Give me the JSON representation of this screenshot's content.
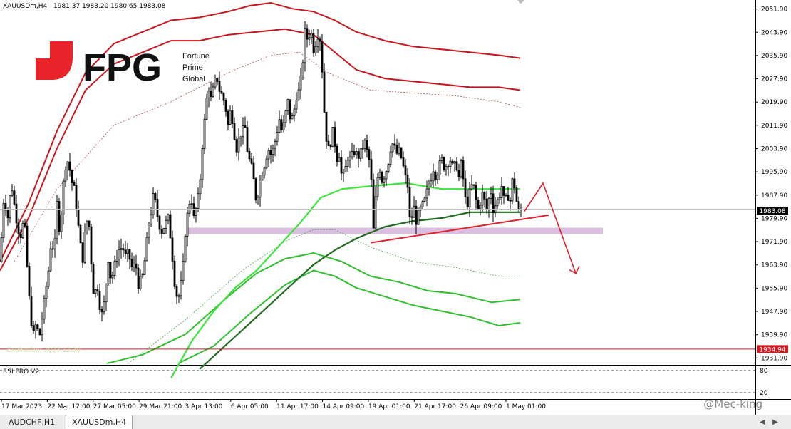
{
  "header": {
    "symbol": "XAUUSDm,H4",
    "ohlc": "1981.37 1983.20 1980.65 1983.08"
  },
  "logo": {
    "brand": "FPG",
    "tagline_lines": [
      "Fortune",
      "Prime",
      "Global"
    ]
  },
  "expiration_note": "Expiration: 2023.12.30",
  "watermark": "@Mec-king",
  "indicator": {
    "name": "RSI PRO V2",
    "levels": [
      "80",
      "20"
    ]
  },
  "tabs": [
    {
      "label": "AUDCHF,H1",
      "active": false
    },
    {
      "label": "XAUUSDm,H4",
      "active": true
    }
  ],
  "colors": {
    "upper_band": "#c8151b",
    "lower_band": "#2fbf2f",
    "ma_fast": "#3ee43e",
    "ma_slow": "#1e6b1e",
    "support_zone": "#d7b8dd",
    "trendline": "#e0202a",
    "price_label_bg": "#000000",
    "level_label_bg": "#d01a20",
    "logo_red": "#e8232a"
  },
  "chart_data": {
    "type": "candlestick",
    "symbol": "XAUUSDm",
    "timeframe": "H4",
    "yticks": [
      2051.9,
      2043.9,
      2035.9,
      2027.9,
      2019.9,
      2011.9,
      2003.9,
      1995.9,
      1987.9,
      1979.9,
      1971.9,
      1963.9,
      1955.9,
      1947.9,
      1939.9,
      1931.9
    ],
    "ylim": [
      1930.5,
      2054.5
    ],
    "xticks": [
      "17 Mar 2023",
      "22 Mar 12:00",
      "27 Mar 05:00",
      "29 Mar 21:00",
      "3 Apr 13:00",
      "6 Apr 05:00",
      "11 Apr 17:00",
      "14 Apr 09:00",
      "19 Apr 01:00",
      "21 Apr 17:00",
      "26 Apr 09:00",
      "1 May 01:00"
    ],
    "current_price": 1983.08,
    "horizontal_level": 1934.94,
    "support_zone": [
      1974.5,
      1976.7
    ],
    "close_path": [
      [
        0,
        1965
      ],
      [
        6,
        1990
      ],
      [
        10,
        1978
      ],
      [
        16,
        1992
      ],
      [
        22,
        1981
      ],
      [
        28,
        1973
      ],
      [
        34,
        1980
      ],
      [
        40,
        1955
      ],
      [
        46,
        1939
      ],
      [
        50,
        1943
      ],
      [
        56,
        1940
      ],
      [
        62,
        1951
      ],
      [
        68,
        1962
      ],
      [
        72,
        1973
      ],
      [
        76,
        1967
      ],
      [
        80,
        1985
      ],
      [
        84,
        1974
      ],
      [
        88,
        1990
      ],
      [
        92,
        1998
      ],
      [
        96,
        2000
      ],
      [
        100,
        1993
      ],
      [
        104,
        1990
      ],
      [
        108,
        1982
      ],
      [
        112,
        1972
      ],
      [
        116,
        1966
      ],
      [
        120,
        1977
      ],
      [
        124,
        1981
      ],
      [
        128,
        1965
      ],
      [
        132,
        1952
      ],
      [
        136,
        1958
      ],
      [
        140,
        1950
      ],
      [
        144,
        1946
      ],
      [
        148,
        1955
      ],
      [
        152,
        1966
      ],
      [
        156,
        1958
      ],
      [
        160,
        1963
      ],
      [
        166,
        1969
      ],
      [
        172,
        1970
      ],
      [
        176,
        1967
      ],
      [
        180,
        1968
      ],
      [
        186,
        1962
      ],
      [
        190,
        1965
      ],
      [
        194,
        1957
      ],
      [
        200,
        1960
      ],
      [
        204,
        1967
      ],
      [
        208,
        1977
      ],
      [
        212,
        1982
      ],
      [
        216,
        1989
      ],
      [
        220,
        1982
      ],
      [
        226,
        1975
      ],
      [
        232,
        1978
      ],
      [
        236,
        1980
      ],
      [
        240,
        1972
      ],
      [
        246,
        1955
      ],
      [
        250,
        1952
      ],
      [
        256,
        1960
      ],
      [
        260,
        1975
      ],
      [
        264,
        1983
      ],
      [
        268,
        1988
      ],
      [
        272,
        1980
      ],
      [
        276,
        1984
      ],
      [
        280,
        1990
      ],
      [
        284,
        2005
      ],
      [
        288,
        2016
      ],
      [
        292,
        2026
      ],
      [
        296,
        2021
      ],
      [
        300,
        2025
      ],
      [
        304,
        2029
      ],
      [
        308,
        2024
      ],
      [
        312,
        2022
      ],
      [
        316,
        2019
      ],
      [
        320,
        2012
      ],
      [
        324,
        2018
      ],
      [
        328,
        2010
      ],
      [
        332,
        2004
      ],
      [
        336,
        2008
      ],
      [
        340,
        2010
      ],
      [
        344,
        2011
      ],
      [
        348,
        2001
      ],
      [
        352,
        1999
      ],
      [
        356,
        1993
      ],
      [
        360,
        1985
      ],
      [
        364,
        1992
      ],
      [
        368,
        1996
      ],
      [
        372,
        1999
      ],
      [
        376,
        2004
      ],
      [
        380,
        2002
      ],
      [
        384,
        2004
      ],
      [
        388,
        2009
      ],
      [
        392,
        2014
      ],
      [
        396,
        2009
      ],
      [
        400,
        2015
      ],
      [
        404,
        2020
      ],
      [
        408,
        2013
      ],
      [
        412,
        2016
      ],
      [
        416,
        2022
      ],
      [
        420,
        2024
      ],
      [
        424,
        2031
      ],
      [
        428,
        2044
      ],
      [
        432,
        2041
      ],
      [
        436,
        2045
      ],
      [
        440,
        2038
      ],
      [
        444,
        2041
      ],
      [
        448,
        2045
      ],
      [
        452,
        2031
      ],
      [
        456,
        2012
      ],
      [
        460,
        2003
      ],
      [
        464,
        2006
      ],
      [
        468,
        2011
      ],
      [
        472,
        2000
      ],
      [
        476,
        2002
      ],
      [
        480,
        1993
      ],
      [
        484,
        1996
      ],
      [
        488,
        2001
      ],
      [
        492,
        2000
      ],
      [
        496,
        2003
      ],
      [
        500,
        2002
      ],
      [
        504,
        2001
      ],
      [
        508,
        2004
      ],
      [
        512,
        2006
      ],
      [
        516,
        2002
      ],
      [
        520,
        1998
      ],
      [
        524,
        1976
      ],
      [
        528,
        1990
      ],
      [
        532,
        1998
      ],
      [
        536,
        1993
      ],
      [
        540,
        1995
      ],
      [
        544,
        1998
      ],
      [
        548,
        2004
      ],
      [
        552,
        2006
      ],
      [
        556,
        2002
      ],
      [
        560,
        2003
      ],
      [
        564,
        2000
      ],
      [
        568,
        1995
      ],
      [
        572,
        1991
      ],
      [
        576,
        1976
      ],
      [
        580,
        1985
      ],
      [
        584,
        1979
      ],
      [
        588,
        1982
      ],
      [
        592,
        1984
      ],
      [
        596,
        1986
      ],
      [
        600,
        1990
      ],
      [
        604,
        1993
      ],
      [
        608,
        1997
      ],
      [
        612,
        1994
      ],
      [
        616,
        1998
      ],
      [
        620,
        2000
      ],
      [
        624,
        1997
      ],
      [
        628,
        1999
      ],
      [
        632,
        2000
      ],
      [
        636,
        1997
      ],
      [
        640,
        1999
      ],
      [
        644,
        1994
      ],
      [
        648,
        2000
      ],
      [
        652,
        1987
      ],
      [
        656,
        1985
      ],
      [
        660,
        1990
      ],
      [
        664,
        1992
      ],
      [
        668,
        1986
      ],
      [
        672,
        1982
      ],
      [
        676,
        1989
      ],
      [
        680,
        1986
      ],
      [
        684,
        1982
      ],
      [
        688,
        1991
      ],
      [
        692,
        1983
      ],
      [
        696,
        1985
      ],
      [
        700,
        1987
      ],
      [
        704,
        1991
      ],
      [
        708,
        1985
      ],
      [
        712,
        1988
      ],
      [
        716,
        1986
      ],
      [
        720,
        1995
      ],
      [
        724,
        1987
      ],
      [
        728,
        1982
      ],
      [
        732,
        1983.08
      ]
    ],
    "upper_band_outer": [
      [
        0,
        1965
      ],
      [
        40,
        1985
      ],
      [
        80,
        2010
      ],
      [
        120,
        2030
      ],
      [
        160,
        2040
      ],
      [
        200,
        2044
      ],
      [
        240,
        2048
      ],
      [
        280,
        2049
      ],
      [
        320,
        2051
      ],
      [
        350,
        2053
      ],
      [
        380,
        2054
      ],
      [
        410,
        2052
      ],
      [
        440,
        2051
      ],
      [
        470,
        2048
      ],
      [
        500,
        2044
      ],
      [
        540,
        2041
      ],
      [
        580,
        2039
      ],
      [
        620,
        2038
      ],
      [
        660,
        2037
      ],
      [
        700,
        2036
      ],
      [
        730,
        2035
      ]
    ],
    "upper_band_mid": [
      [
        0,
        1962
      ],
      [
        40,
        1980
      ],
      [
        80,
        2004
      ],
      [
        120,
        2024
      ],
      [
        160,
        2033
      ],
      [
        200,
        2037
      ],
      [
        240,
        2041
      ],
      [
        280,
        2041
      ],
      [
        320,
        2043
      ],
      [
        360,
        2044
      ],
      [
        400,
        2045
      ],
      [
        440,
        2043
      ],
      [
        470,
        2037
      ],
      [
        500,
        2031
      ],
      [
        540,
        2028
      ],
      [
        580,
        2027
      ],
      [
        620,
        2026
      ],
      [
        660,
        2025
      ],
      [
        700,
        2025
      ],
      [
        730,
        2024
      ]
    ],
    "upper_band_dashed": [
      [
        20,
        1965
      ],
      [
        80,
        1990
      ],
      [
        160,
        2012
      ],
      [
        240,
        2020
      ],
      [
        320,
        2030
      ],
      [
        380,
        2036
      ],
      [
        420,
        2037
      ],
      [
        460,
        2030
      ],
      [
        520,
        2024
      ],
      [
        580,
        2023
      ],
      [
        640,
        2022
      ],
      [
        700,
        2020
      ],
      [
        730,
        2018
      ]
    ],
    "ma_fast": [
      [
        240,
        1925
      ],
      [
        270,
        1938
      ],
      [
        300,
        1948
      ],
      [
        330,
        1956
      ],
      [
        360,
        1962
      ],
      [
        390,
        1970
      ],
      [
        420,
        1978
      ],
      [
        450,
        1987
      ],
      [
        480,
        1990
      ],
      [
        520,
        1991
      ],
      [
        570,
        1992
      ],
      [
        620,
        1990
      ],
      [
        680,
        1990
      ],
      [
        730,
        1990
      ]
    ],
    "ma_slow": [
      [
        280,
        1928
      ],
      [
        320,
        1937
      ],
      [
        360,
        1946
      ],
      [
        400,
        1955
      ],
      [
        440,
        1964
      ],
      [
        470,
        1969
      ],
      [
        500,
        1973
      ],
      [
        540,
        1977
      ],
      [
        580,
        1979
      ],
      [
        620,
        1980
      ],
      [
        660,
        1982
      ],
      [
        700,
        1982
      ],
      [
        730,
        1982
      ]
    ],
    "lower_band_1": [
      [
        150,
        1930
      ],
      [
        200,
        1933
      ],
      [
        260,
        1940
      ],
      [
        320,
        1953
      ],
      [
        360,
        1961
      ],
      [
        400,
        1966
      ],
      [
        440,
        1968
      ],
      [
        480,
        1965
      ],
      [
        520,
        1960
      ],
      [
        560,
        1958
      ],
      [
        600,
        1955
      ],
      [
        640,
        1954
      ],
      [
        690,
        1951
      ],
      [
        730,
        1952
      ]
    ],
    "lower_band_2": [
      [
        250,
        1930
      ],
      [
        300,
        1936
      ],
      [
        350,
        1947
      ],
      [
        400,
        1957
      ],
      [
        440,
        1962
      ],
      [
        470,
        1960
      ],
      [
        500,
        1956
      ],
      [
        540,
        1953
      ],
      [
        580,
        1950
      ],
      [
        620,
        1948
      ],
      [
        660,
        1946
      ],
      [
        700,
        1943
      ],
      [
        730,
        1944
      ]
    ],
    "lower_band_dashed": [
      [
        180,
        1930
      ],
      [
        260,
        1945
      ],
      [
        340,
        1962
      ],
      [
        400,
        1972
      ],
      [
        440,
        1976
      ],
      [
        470,
        1976
      ],
      [
        520,
        1970
      ],
      [
        580,
        1965
      ],
      [
        640,
        1963
      ],
      [
        700,
        1960
      ],
      [
        730,
        1960
      ]
    ],
    "trendline": [
      [
        520,
        1971.5
      ],
      [
        770,
        1981
      ]
    ],
    "forecast_arrow": [
      [
        735,
        1982
      ],
      [
        762,
        1992
      ],
      [
        808,
        1961
      ]
    ]
  }
}
